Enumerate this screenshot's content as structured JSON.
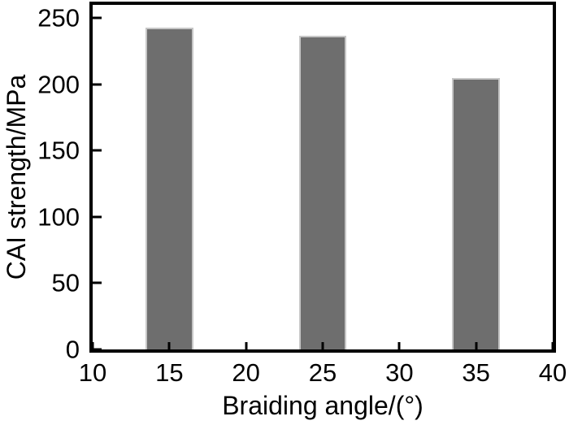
{
  "figure": {
    "background": "#ffffff",
    "text_color": "#000000"
  },
  "chart_data": {
    "type": "bar",
    "title": "",
    "xlabel": "Braiding angle/(°)",
    "ylabel": "CAI strength/MPa",
    "x": [
      15,
      25,
      35
    ],
    "values": [
      243,
      237,
      205
    ],
    "x_ticks": [
      10,
      15,
      20,
      25,
      30,
      35,
      40
    ],
    "y_ticks": [
      0,
      50,
      100,
      150,
      200,
      250
    ],
    "xlim": [
      10,
      40
    ],
    "ylim": [
      0,
      260
    ],
    "bar_width_units": 3.1,
    "grid": false,
    "legend": null,
    "bar_fill": "#6e6e6e",
    "bar_outline": "#c6c6c6",
    "axis_color": "#000000"
  }
}
